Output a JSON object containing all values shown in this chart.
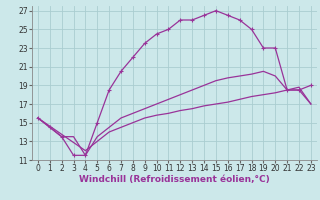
{
  "background_color": "#cce8ea",
  "grid_color": "#aacdd0",
  "line_color": "#993399",
  "marker": "+",
  "xlabel": "Windchill (Refroidissement éolien,°C)",
  "xlabel_fontsize": 6.5,
  "tick_fontsize": 5.5,
  "xlim": [
    -0.5,
    23.5
  ],
  "ylim": [
    11,
    27.5
  ],
  "yticks": [
    11,
    13,
    15,
    17,
    19,
    21,
    23,
    25,
    27
  ],
  "xticks": [
    0,
    1,
    2,
    3,
    4,
    5,
    6,
    7,
    8,
    9,
    10,
    11,
    12,
    13,
    14,
    15,
    16,
    17,
    18,
    19,
    20,
    21,
    22,
    23
  ],
  "series": [
    {
      "x": [
        0,
        1,
        2,
        3,
        4,
        5,
        6,
        7,
        8,
        9,
        10,
        11,
        12,
        13,
        14,
        15,
        16,
        17,
        18,
        19,
        20,
        21,
        22,
        23
      ],
      "y": [
        15.5,
        14.5,
        13.5,
        11.5,
        11.5,
        15.0,
        18.5,
        20.5,
        22.0,
        23.5,
        24.5,
        25.0,
        26.0,
        26.0,
        26.5,
        27.0,
        26.5,
        26.0,
        25.0,
        23.0,
        23.0,
        18.5,
        18.5,
        19.0
      ],
      "has_markers": true
    },
    {
      "x": [
        0,
        4,
        5,
        6,
        7,
        8,
        9,
        10,
        11,
        12,
        13,
        14,
        15,
        16,
        17,
        18,
        19,
        20,
        21,
        22,
        23
      ],
      "y": [
        15.5,
        12.0,
        13.0,
        14.0,
        14.5,
        15.0,
        15.5,
        15.8,
        16.0,
        16.3,
        16.5,
        16.8,
        17.0,
        17.2,
        17.5,
        17.8,
        18.0,
        18.2,
        18.5,
        18.8,
        17.0
      ],
      "has_markers": false
    },
    {
      "x": [
        0,
        1,
        2,
        3,
        4,
        5,
        6,
        7,
        8,
        9,
        10,
        11,
        12,
        13,
        14,
        15,
        16,
        17,
        18,
        19,
        20,
        21,
        22,
        23
      ],
      "y": [
        15.5,
        14.5,
        13.5,
        13.5,
        11.5,
        13.5,
        14.5,
        15.5,
        16.0,
        16.5,
        17.0,
        17.5,
        18.0,
        18.5,
        19.0,
        19.5,
        19.8,
        20.0,
        20.2,
        20.5,
        20.0,
        18.5,
        18.5,
        17.0
      ],
      "has_markers": false
    }
  ]
}
